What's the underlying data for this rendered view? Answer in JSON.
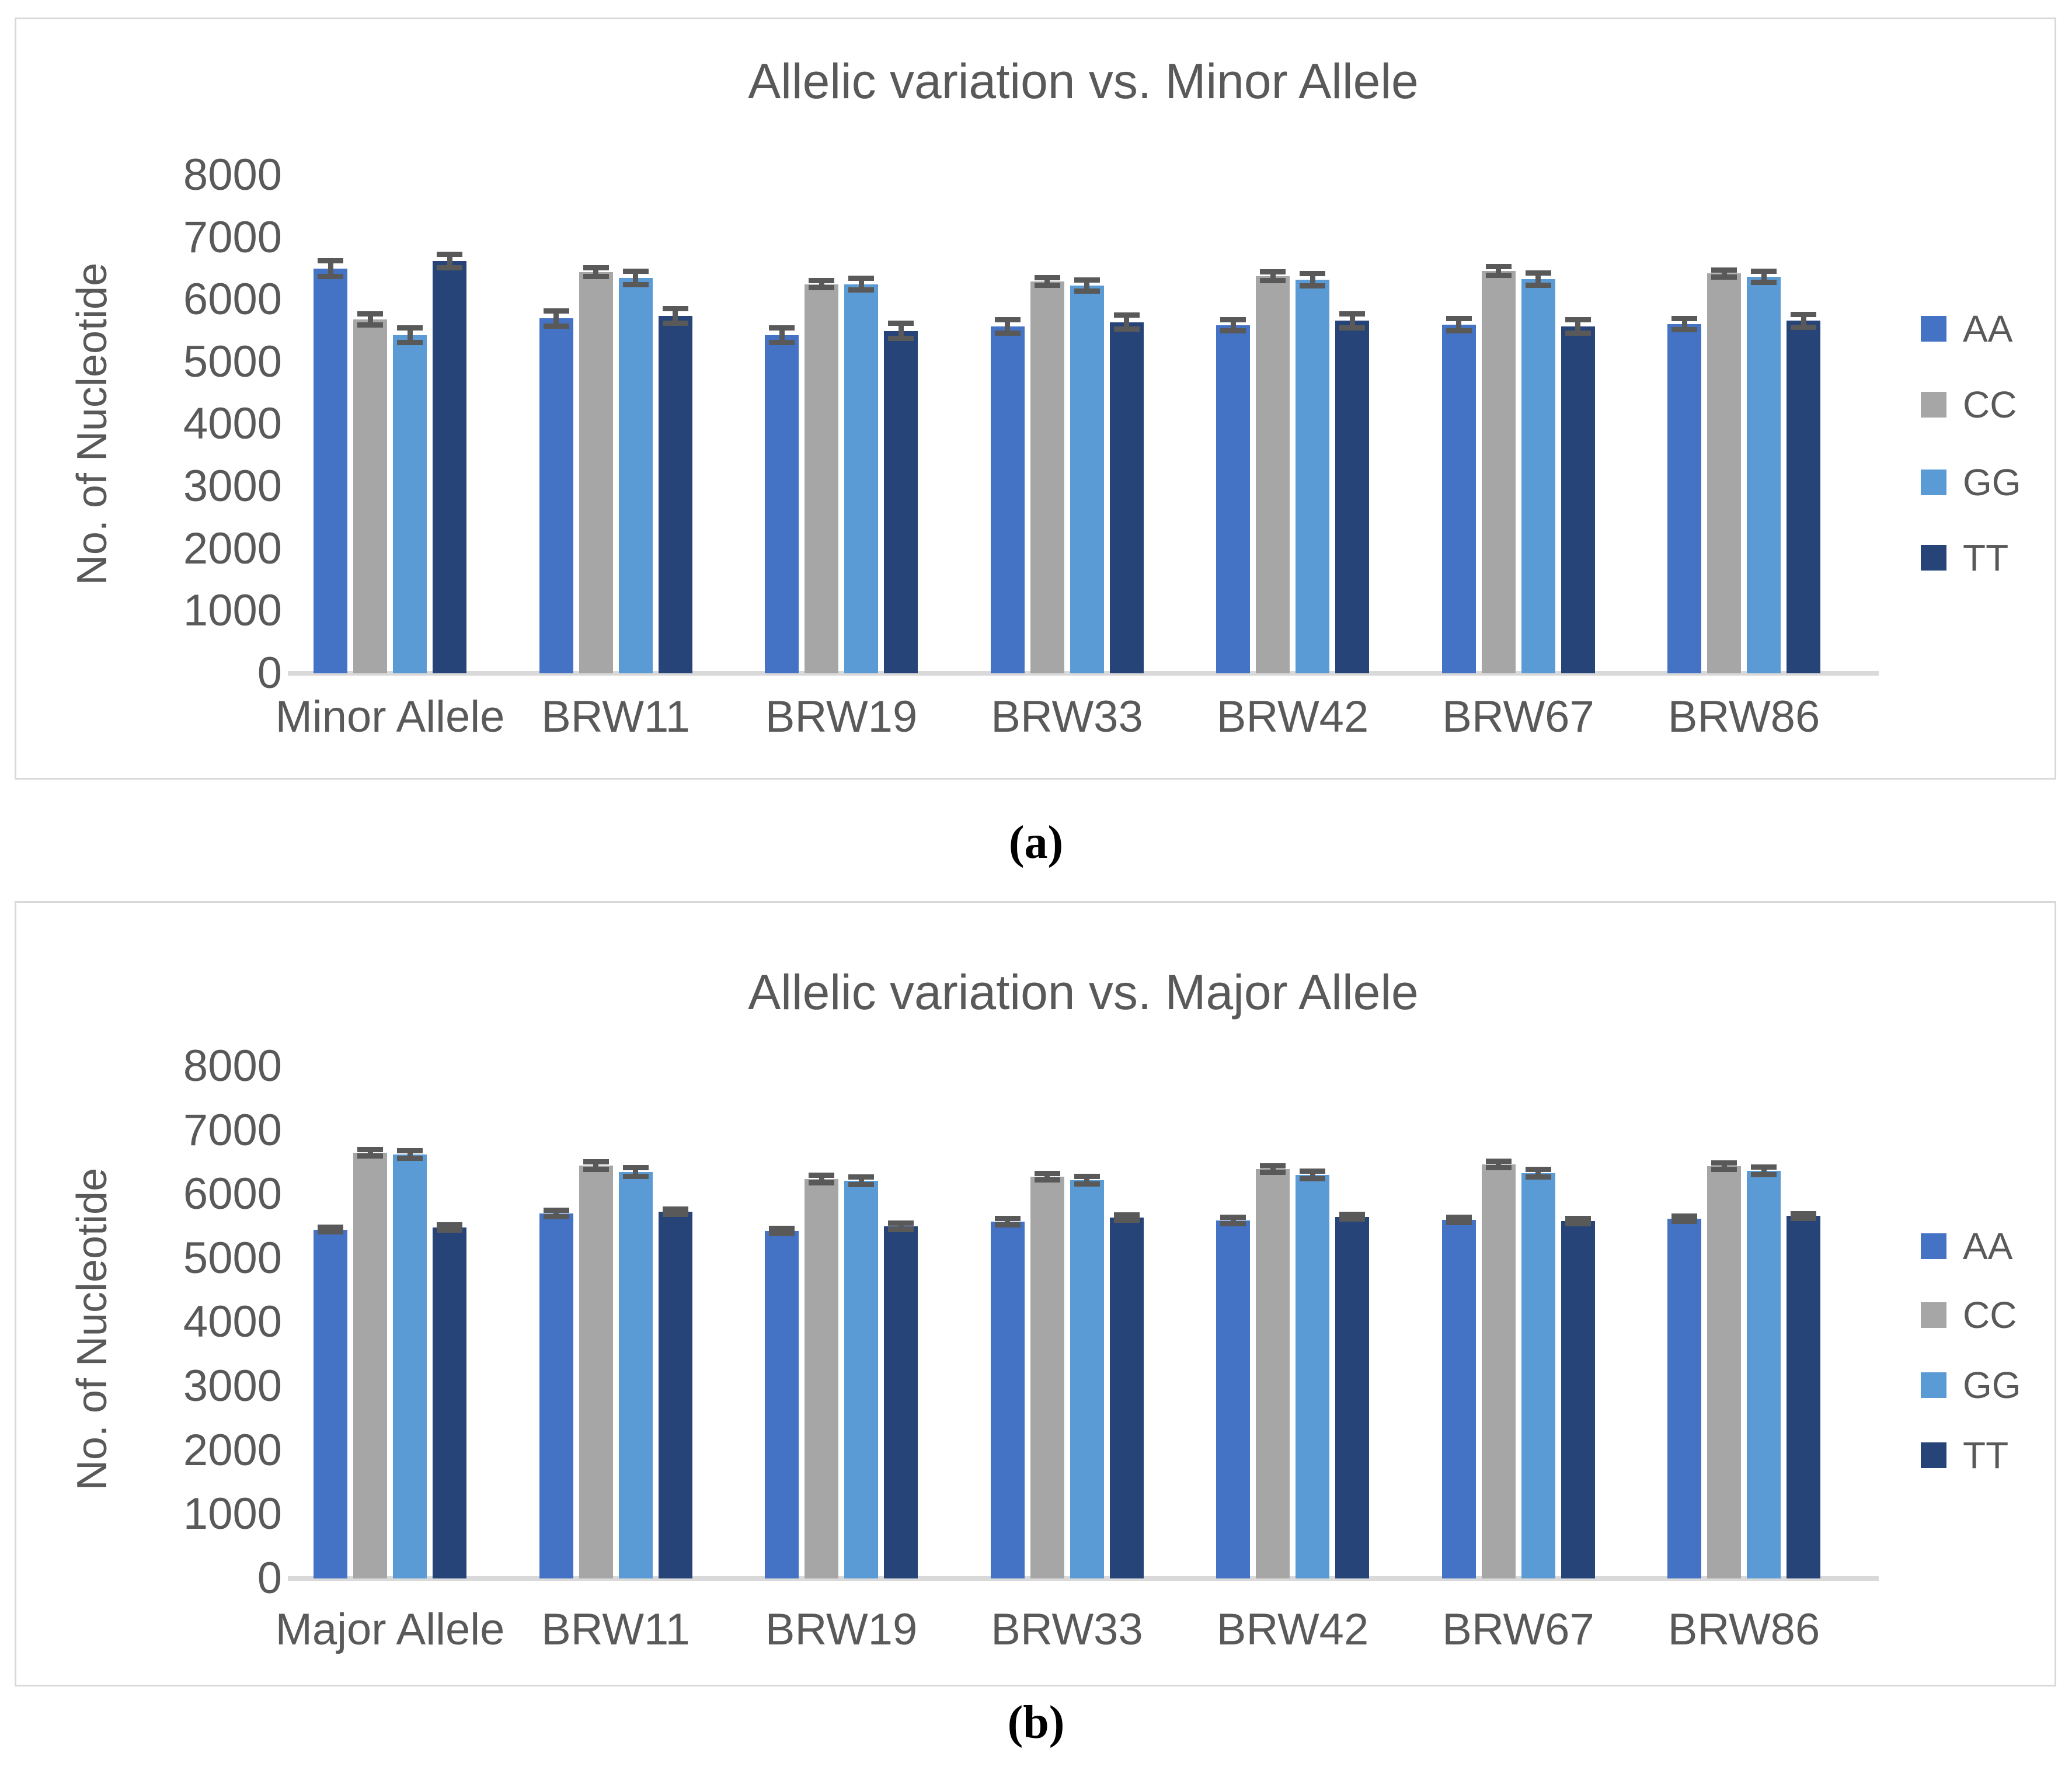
{
  "figure": {
    "captions": {
      "a": "(a)",
      "b": "(b)"
    },
    "colors": {
      "AA": "#4472C4",
      "CC": "#A6A6A6",
      "GG": "#5B9BD5",
      "TT": "#264478",
      "error_bar": "#595959",
      "axis_line": "#D9D9D9",
      "text": "#595959"
    }
  },
  "chart_data": [
    {
      "type": "bar",
      "panel": "a",
      "title": "Allelic variation vs. Minor Allele",
      "xlabel": "",
      "ylabel": "No. of Nucleotide",
      "ylim": [
        0,
        8000
      ],
      "yticks": [
        0,
        1000,
        2000,
        3000,
        4000,
        5000,
        6000,
        7000,
        8000
      ],
      "grid": false,
      "legend_position": "right",
      "error_bars": true,
      "categories": [
        "Minor Allele",
        "BRW11",
        "BRW19",
        "BRW33",
        "BRW42",
        "BRW67",
        "BRW86"
      ],
      "series": [
        {
          "name": "AA",
          "color": "#4472C4",
          "values": [
            6500,
            5700,
            5430,
            5570,
            5590,
            5600,
            5610
          ],
          "errors": [
            130,
            120,
            120,
            110,
            90,
            100,
            90
          ]
        },
        {
          "name": "CC",
          "color": "#A6A6A6",
          "values": [
            5680,
            6440,
            6250,
            6290,
            6380,
            6460,
            6420
          ],
          "errors": [
            90,
            70,
            60,
            60,
            70,
            70,
            60
          ]
        },
        {
          "name": "GG",
          "color": "#5B9BD5",
          "values": [
            5430,
            6350,
            6250,
            6230,
            6320,
            6330,
            6370
          ],
          "errors": [
            120,
            110,
            90,
            90,
            100,
            100,
            90
          ]
        },
        {
          "name": "TT",
          "color": "#264478",
          "values": [
            6620,
            5740,
            5500,
            5640,
            5660,
            5570,
            5660
          ],
          "errors": [
            110,
            120,
            120,
            110,
            110,
            110,
            100
          ]
        }
      ]
    },
    {
      "type": "bar",
      "panel": "b",
      "title": "Allelic variation vs. Major Allele",
      "xlabel": "",
      "ylabel": "No. of Nucleotide",
      "ylim": [
        0,
        8000
      ],
      "yticks": [
        0,
        1000,
        2000,
        3000,
        4000,
        5000,
        6000,
        7000,
        8000
      ],
      "grid": false,
      "legend_position": "right",
      "error_bars": true,
      "categories": [
        "Major Allele",
        "BRW11",
        "BRW19",
        "BRW33",
        "BRW42",
        "BRW67",
        "BRW86"
      ],
      "series": [
        {
          "name": "AA",
          "color": "#4472C4",
          "values": [
            5450,
            5700,
            5430,
            5570,
            5590,
            5600,
            5620
          ],
          "errors": [
            40,
            50,
            40,
            50,
            50,
            40,
            40
          ]
        },
        {
          "name": "CC",
          "color": "#A6A6A6",
          "values": [
            6650,
            6450,
            6240,
            6280,
            6390,
            6470,
            6440
          ],
          "errors": [
            50,
            60,
            60,
            50,
            50,
            50,
            50
          ]
        },
        {
          "name": "GG",
          "color": "#5B9BD5",
          "values": [
            6620,
            6350,
            6210,
            6220,
            6300,
            6330,
            6370
          ],
          "errors": [
            60,
            70,
            60,
            60,
            60,
            60,
            60
          ]
        },
        {
          "name": "TT",
          "color": "#264478",
          "values": [
            5480,
            5730,
            5500,
            5640,
            5650,
            5580,
            5660
          ],
          "errors": [
            40,
            40,
            50,
            40,
            40,
            40,
            40
          ]
        }
      ]
    }
  ]
}
